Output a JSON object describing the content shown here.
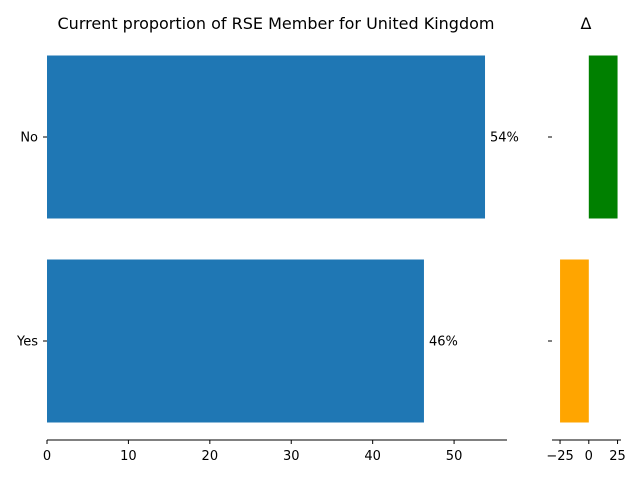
{
  "chart_data": [
    {
      "type": "bar",
      "orientation": "horizontal",
      "title": "Current proportion of RSE Member for United Kingdom",
      "categories": [
        "No",
        "Yes"
      ],
      "values": [
        53.8,
        46.3
      ],
      "value_labels": [
        "54%",
        "46%"
      ],
      "xlim": [
        0,
        56.5
      ],
      "xticks": [
        0,
        10,
        20,
        30,
        40,
        50
      ],
      "xlabel": "",
      "ylabel": "",
      "bar_color": "#1f77b4",
      "grid": false
    },
    {
      "type": "bar",
      "orientation": "horizontal",
      "title": "Δ",
      "categories": [
        "No",
        "Yes"
      ],
      "values": [
        25,
        -25
      ],
      "xlim": [
        -32,
        28
      ],
      "xticks": [
        -25,
        0,
        25
      ],
      "xtick_labels": [
        "−25",
        "0",
        "25"
      ],
      "xlabel": "",
      "ylabel": "",
      "colors": [
        "#008000",
        "#ffa500"
      ],
      "grid": false
    }
  ]
}
